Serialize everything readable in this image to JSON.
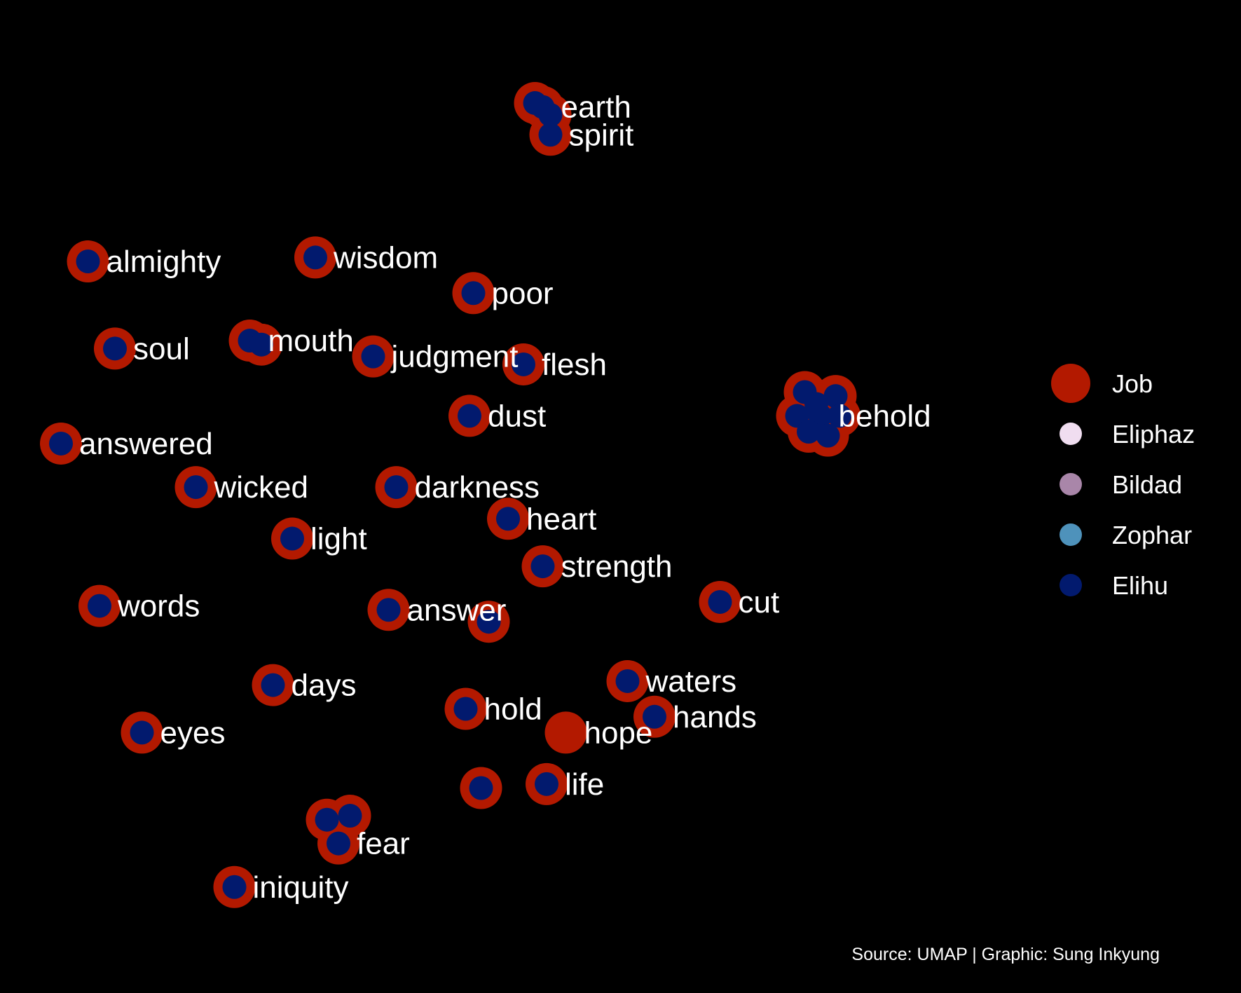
{
  "chart_data": {
    "type": "scatter",
    "title": "",
    "xlabel": "",
    "ylabel": "",
    "axes_visible": false,
    "grid": false,
    "legend_position": "right",
    "caption": "Source: UMAP | Graphic: Sung Inkyung",
    "colors": {
      "background": "#000000",
      "text": "#ffffff",
      "Job": "#B31900",
      "Eliphaz": "#F0DDF0",
      "Bildad": "#A986A9",
      "Zophar": "#4E92BB",
      "Elihu": "#021A6E"
    },
    "legend": [
      {
        "label": "Job",
        "color": "#B31900",
        "size": "large"
      },
      {
        "label": "Eliphaz",
        "color": "#F0DDF0",
        "size": "small"
      },
      {
        "label": "Bildad",
        "color": "#A986A9",
        "size": "small"
      },
      {
        "label": "Zophar",
        "color": "#4E92BB",
        "size": "small"
      },
      {
        "label": "Elihu",
        "color": "#021A6E",
        "size": "small"
      }
    ],
    "points": [
      {
        "word": "earth",
        "x": 7.35,
        "y": 9.1,
        "extras": [
          [
            7.25,
            9.15
          ],
          [
            7.45,
            9.0
          ]
        ]
      },
      {
        "word": "spirit",
        "x": 7.45,
        "y": 8.75,
        "extras": []
      },
      {
        "word": "almighty",
        "x": 1.45,
        "y": 7.15,
        "extras": []
      },
      {
        "word": "wisdom",
        "x": 4.4,
        "y": 7.2,
        "extras": []
      },
      {
        "word": "poor",
        "x": 6.45,
        "y": 6.75,
        "extras": []
      },
      {
        "word": "soul",
        "x": 1.8,
        "y": 6.05,
        "extras": []
      },
      {
        "word": "mouth",
        "x": 3.55,
        "y": 6.15,
        "extras": [
          [
            3.7,
            6.1
          ]
        ]
      },
      {
        "word": "judgment",
        "x": 5.15,
        "y": 5.95,
        "extras": []
      },
      {
        "word": "flesh",
        "x": 7.1,
        "y": 5.85,
        "extras": []
      },
      {
        "word": "behold",
        "x": 10.95,
        "y": 5.2,
        "extras": [
          [
            10.75,
            5.5
          ],
          [
            11.15,
            5.45
          ],
          [
            10.65,
            5.2
          ],
          [
            11.2,
            5.2
          ],
          [
            10.8,
            5.0
          ],
          [
            11.05,
            4.95
          ],
          [
            10.9,
            5.35
          ]
        ]
      },
      {
        "word": "dust",
        "x": 6.4,
        "y": 5.2,
        "extras": []
      },
      {
        "word": "answered",
        "x": 1.1,
        "y": 4.85,
        "extras": []
      },
      {
        "word": "wicked",
        "x": 2.85,
        "y": 4.3,
        "extras": []
      },
      {
        "word": "darkness",
        "x": 5.45,
        "y": 4.3,
        "extras": []
      },
      {
        "word": "heart",
        "x": 6.9,
        "y": 3.9,
        "extras": []
      },
      {
        "word": "light",
        "x": 4.1,
        "y": 3.65,
        "extras": []
      },
      {
        "word": "strength",
        "x": 7.35,
        "y": 3.3,
        "extras": []
      },
      {
        "word": "words",
        "x": 1.6,
        "y": 2.8,
        "extras": []
      },
      {
        "word": "answer",
        "x": 5.35,
        "y": 2.75,
        "extras": [
          [
            6.65,
            2.6
          ]
        ]
      },
      {
        "word": "cut",
        "x": 9.65,
        "y": 2.85,
        "extras": []
      },
      {
        "word": "waters",
        "x": 8.45,
        "y": 1.85,
        "extras": []
      },
      {
        "word": "days",
        "x": 3.85,
        "y": 1.8,
        "extras": []
      },
      {
        "word": "hands",
        "x": 8.8,
        "y": 1.4,
        "extras": []
      },
      {
        "word": "hold",
        "x": 6.35,
        "y": 1.5,
        "extras": []
      },
      {
        "word": "hope",
        "x": 7.65,
        "y": 1.2,
        "extras": [],
        "job_only": true
      },
      {
        "word": "eyes",
        "x": 2.15,
        "y": 1.2,
        "extras": []
      },
      {
        "word": "life",
        "x": 7.4,
        "y": 0.55,
        "extras": [
          [
            6.55,
            0.5
          ]
        ]
      },
      {
        "word": "fear",
        "x": 4.7,
        "y": -0.2,
        "extras": [
          [
            4.55,
            0.1
          ],
          [
            4.85,
            0.15
          ]
        ]
      },
      {
        "word": "iniquity",
        "x": 3.35,
        "y": -0.75,
        "extras": []
      }
    ]
  }
}
